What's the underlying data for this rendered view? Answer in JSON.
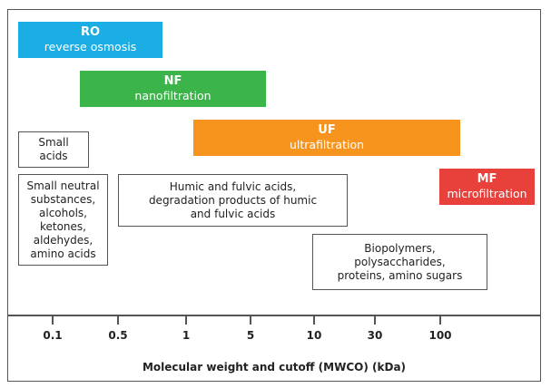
{
  "processes": [
    {
      "abbr": "RO",
      "name": "reverse osmosis",
      "color": "#1aaee5"
    },
    {
      "abbr": "NF",
      "name": "nanofiltration",
      "color": "#3bb449"
    },
    {
      "abbr": "UF",
      "name": "ultrafiltration",
      "color": "#f7941d"
    },
    {
      "abbr": "MF",
      "name": "microfiltration",
      "color": "#e8413b"
    }
  ],
  "substances": [
    "Small\nacids",
    "Small neutral\nsubstances,\nalcohols,\nketones,\naldehydes,\namino acids",
    "Humic and fulvic acids,\ndegradation products of humic\nand fulvic acids",
    "Biopolymers,\npolysaccharides,\nproteins, amino sugars"
  ],
  "axis": {
    "ticks": [
      "0.1",
      "0.5",
      "1",
      "5",
      "10",
      "30",
      "100"
    ],
    "title": "Molecular weight and cutoff (MWCO) (kDa)"
  }
}
